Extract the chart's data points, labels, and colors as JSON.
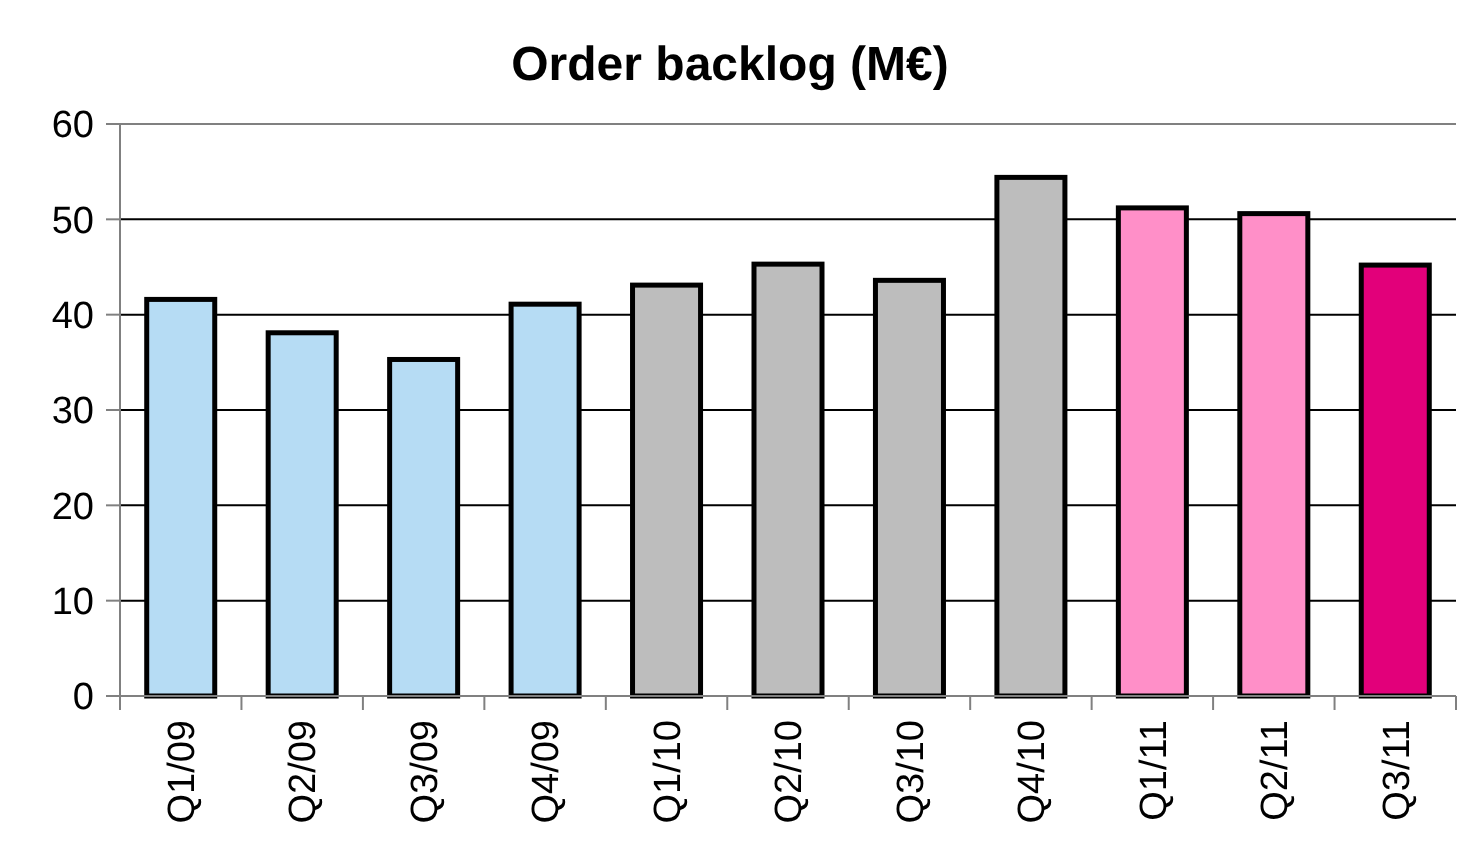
{
  "chart_data": {
    "type": "bar",
    "title": "Order backlog (M€)",
    "categories": [
      "Q1/09",
      "Q2/09",
      "Q3/09",
      "Q4/09",
      "Q1/10",
      "Q2/10",
      "Q3/10",
      "Q4/10",
      "Q1/11",
      "Q2/11",
      "Q3/11"
    ],
    "values": [
      41.6,
      38.1,
      35.3,
      41.1,
      43.1,
      45.3,
      43.6,
      54.4,
      51.2,
      50.6,
      45.2
    ],
    "colors": [
      "#b6dcf4",
      "#b6dcf4",
      "#b6dcf4",
      "#b6dcf4",
      "#bdbdbd",
      "#bdbdbd",
      "#bdbdbd",
      "#bdbdbd",
      "#ff8fc8",
      "#ff8fc8",
      "#e2007a"
    ],
    "ylim": [
      0,
      60
    ],
    "yticks": [
      0,
      10,
      20,
      30,
      40,
      50,
      60
    ],
    "grid": "y"
  }
}
